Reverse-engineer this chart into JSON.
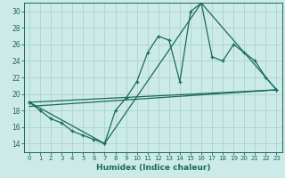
{
  "xlabel": "Humidex (Indice chaleur)",
  "background_color": "#cceae7",
  "grid_color": "#aad4d0",
  "line_color": "#1a6b5a",
  "xlim": [
    -0.5,
    23.5
  ],
  "ylim": [
    13,
    31
  ],
  "yticks": [
    14,
    16,
    18,
    20,
    22,
    24,
    26,
    28,
    30
  ],
  "xticks": [
    0,
    1,
    2,
    3,
    4,
    5,
    6,
    7,
    8,
    9,
    10,
    11,
    12,
    13,
    14,
    15,
    16,
    17,
    18,
    19,
    20,
    21,
    22,
    23
  ],
  "line1_x": [
    0,
    1,
    2,
    3,
    4,
    5,
    6,
    7,
    8,
    9,
    10,
    11,
    12,
    13,
    14,
    15,
    16,
    17,
    18,
    19,
    20,
    21,
    22,
    23
  ],
  "line1_y": [
    19.0,
    18.0,
    17.0,
    16.5,
    15.5,
    15.0,
    14.5,
    14.0,
    18.0,
    19.5,
    21.5,
    25.0,
    27.0,
    26.5,
    21.5,
    30.0,
    31.0,
    24.5,
    24.0,
    26.0,
    25.0,
    24.0,
    22.0,
    20.5
  ],
  "line2_x": [
    0,
    7,
    16,
    23
  ],
  "line2_y": [
    19.0,
    14.0,
    31.0,
    20.5
  ],
  "line3_x": [
    0,
    23
  ],
  "line3_y": [
    18.5,
    20.5
  ],
  "line4_x": [
    0,
    23
  ],
  "line4_y": [
    19.0,
    20.5
  ]
}
